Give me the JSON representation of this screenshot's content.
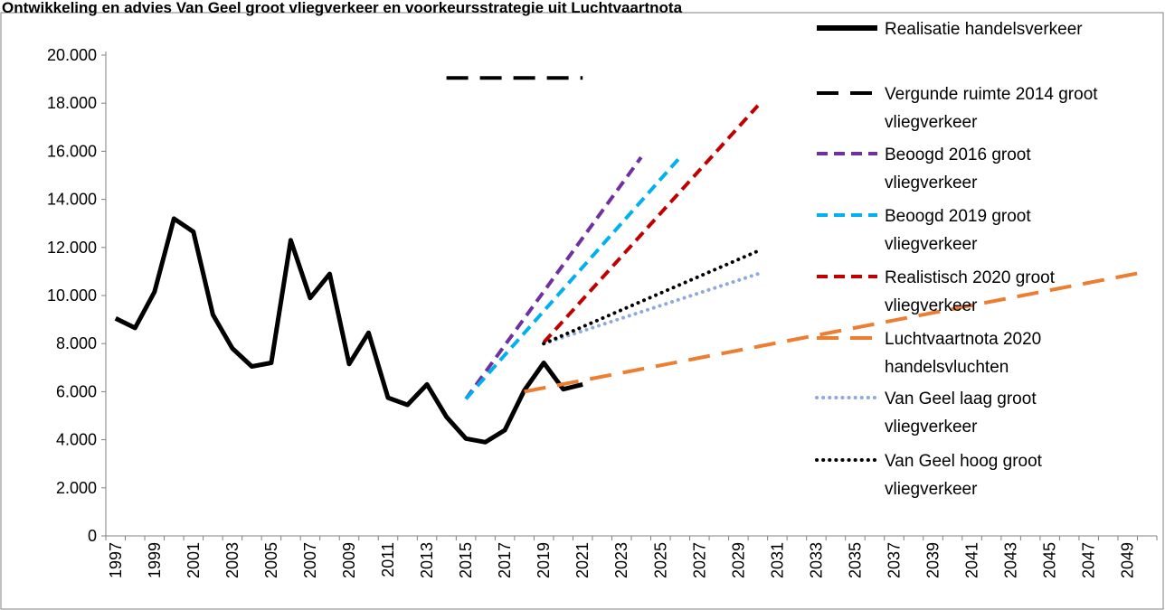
{
  "chart_data": {
    "type": "line",
    "title": "Ontwikkeling en advies Van Geel groot vliegverkeer en voorkeursstrategie uit Luchtvaartnota",
    "xlabel": "",
    "ylabel": "",
    "x_range": [
      1997,
      2050
    ],
    "x_tick_labels": [
      "1997",
      "1999",
      "2001",
      "2003",
      "2005",
      "2007",
      "2009",
      "2011",
      "2013",
      "2015",
      "2017",
      "2019",
      "2021",
      "2023",
      "2025",
      "2027",
      "2029",
      "2031",
      "2033",
      "2035",
      "2037",
      "2039",
      "2041",
      "2043",
      "2045",
      "2047",
      "2049"
    ],
    "ylim": [
      0,
      20000
    ],
    "y_tick_labels": [
      "0",
      "2.000",
      "4.000",
      "6.000",
      "8.000",
      "10.000",
      "12.000",
      "14.000",
      "16.000",
      "18.000",
      "20.000"
    ],
    "grid": false,
    "legend_position": "right",
    "series": [
      {
        "name": "Realisatie handelsverkeer",
        "color": "#000000",
        "dash": "solid",
        "x": [
          1997,
          1998,
          1999,
          2000,
          2001,
          2002,
          2003,
          2004,
          2005,
          2006,
          2007,
          2008,
          2009,
          2010,
          2011,
          2012,
          2013,
          2014,
          2015,
          2016,
          2017,
          2018,
          2019,
          2020,
          2021
        ],
        "y": [
          9050,
          8650,
          10150,
          13200,
          12650,
          9200,
          7800,
          7050,
          7200,
          12300,
          9900,
          10900,
          7150,
          8450,
          5750,
          5450,
          6300,
          4950,
          4050,
          3900,
          4400,
          6050,
          7200,
          6100,
          6300
        ]
      },
      {
        "name": "Vergunde ruimte 2014 groot vliegverkeer",
        "color": "#000000",
        "dash": "longdash",
        "x": [
          2014,
          2021
        ],
        "y": [
          19050,
          19050
        ]
      },
      {
        "name": "Beoogd 2016 groot vliegverkeer",
        "color": "#7030A0",
        "dash": "dash",
        "x": [
          2015,
          2024
        ],
        "y": [
          5700,
          15750
        ]
      },
      {
        "name": "Beoogd 2019 groot vliegverkeer",
        "color": "#00B0F0",
        "dash": "dash",
        "x": [
          2015,
          2026
        ],
        "y": [
          5700,
          15750
        ]
      },
      {
        "name": "Realistisch 2020 groot vliegverkeer",
        "color": "#C00000",
        "dash": "dash",
        "x": [
          2019,
          2030
        ],
        "y": [
          8050,
          17900
        ]
      },
      {
        "name": "Luchtvaartnota 2020 handelsvluchten",
        "color": "#ED7D31",
        "dash": "longdash",
        "x": [
          2018,
          2050
        ],
        "y": [
          6000,
          11000
        ]
      },
      {
        "name": "Van Geel laag groot vliegverkeer",
        "color": "#8EA9DB",
        "dash": "dot",
        "x": [
          2019,
          2030
        ],
        "y": [
          8000,
          10900
        ]
      },
      {
        "name": "Van Geel hoog groot vliegverkeer",
        "color": "#000000",
        "dash": "dot",
        "x": [
          2019,
          2030
        ],
        "y": [
          8000,
          11850
        ]
      }
    ],
    "legend": [
      {
        "lines": [
          "Realisatie handelsverkeer"
        ],
        "color": "#000000",
        "dash": "solid"
      },
      {
        "lines": [
          "Vergunde ruimte 2014 groot",
          "vliegverkeer"
        ],
        "color": "#000000",
        "dash": "longdash"
      },
      {
        "lines": [
          "Beoogd 2016 groot",
          "vliegverkeer"
        ],
        "color": "#7030A0",
        "dash": "dash"
      },
      {
        "lines": [
          "Beoogd 2019 groot",
          "vliegverkeer"
        ],
        "color": "#00B0F0",
        "dash": "dash"
      },
      {
        "lines": [
          "Realistisch 2020 groot",
          "vliegverkeer"
        ],
        "color": "#C00000",
        "dash": "dash"
      },
      {
        "lines": [
          "Luchtvaartnota 2020",
          "handelsvluchten"
        ],
        "color": "#ED7D31",
        "dash": "longdash"
      },
      {
        "lines": [
          "Van Geel laag groot",
          "vliegverkeer"
        ],
        "color": "#8EA9DB",
        "dash": "dot"
      },
      {
        "lines": [
          "Van Geel hoog groot",
          "vliegverkeer"
        ],
        "color": "#000000",
        "dash": "dot"
      }
    ]
  }
}
